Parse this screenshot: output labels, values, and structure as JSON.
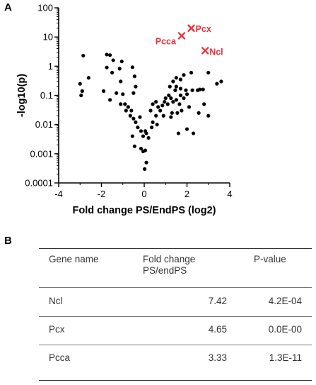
{
  "panel_labels": {
    "a": "A",
    "b": "B"
  },
  "chart_data": {
    "type": "scatter",
    "xlabel": "Fold change PS/EndPS (log2)",
    "ylabel": "-log10(p)",
    "xlim": [
      -4,
      4
    ],
    "ylim": [
      0.0001,
      100
    ],
    "y_scale": "log",
    "x_ticks": [
      "-4",
      "-2",
      "0",
      "2",
      "4"
    ],
    "y_ticks": [
      "0.0001",
      "0.001",
      "0.01",
      "0.1",
      "1",
      "10",
      "100"
    ],
    "grid": false,
    "colors": {
      "points": "#000000",
      "highlight": "#e8333d"
    },
    "points": [
      {
        "x": -2.85,
        "y": 2.3
      },
      {
        "x": -1.75,
        "y": 2.5
      },
      {
        "x": -1.6,
        "y": 2.4
      },
      {
        "x": -1.45,
        "y": 1.6
      },
      {
        "x": -1.05,
        "y": 1.45
      },
      {
        "x": -1.75,
        "y": 0.9
      },
      {
        "x": -1.15,
        "y": 0.82
      },
      {
        "x": -0.55,
        "y": 0.92
      },
      {
        "x": -1.5,
        "y": 0.6
      },
      {
        "x": -0.45,
        "y": 0.45
      },
      {
        "x": -2.6,
        "y": 0.4
      },
      {
        "x": -3.0,
        "y": 0.25
      },
      {
        "x": -1.1,
        "y": 0.3
      },
      {
        "x": -0.4,
        "y": 0.2
      },
      {
        "x": -0.5,
        "y": 0.12
      },
      {
        "x": -2.9,
        "y": 0.14
      },
      {
        "x": -2.95,
        "y": 0.1
      },
      {
        "x": -1.9,
        "y": 0.14
      },
      {
        "x": -1.3,
        "y": 0.12
      },
      {
        "x": -1.0,
        "y": 0.11
      },
      {
        "x": -1.6,
        "y": 0.07
      },
      {
        "x": -1.1,
        "y": 0.05
      },
      {
        "x": -0.9,
        "y": 0.05
      },
      {
        "x": -0.75,
        "y": 0.04
      },
      {
        "x": -0.85,
        "y": 0.03
      },
      {
        "x": -0.6,
        "y": 0.03
      },
      {
        "x": -0.65,
        "y": 0.02
      },
      {
        "x": -0.5,
        "y": 0.016
      },
      {
        "x": -0.4,
        "y": 0.012
      },
      {
        "x": -0.2,
        "y": 0.018
      },
      {
        "x": -0.3,
        "y": 0.008
      },
      {
        "x": -0.15,
        "y": 0.006
      },
      {
        "x": 0.05,
        "y": 0.006
      },
      {
        "x": 0.1,
        "y": 0.005
      },
      {
        "x": -0.55,
        "y": 0.004
      },
      {
        "x": -0.05,
        "y": 0.004
      },
      {
        "x": 0.2,
        "y": 0.0035
      },
      {
        "x": 0.4,
        "y": 0.012
      },
      {
        "x": 0.35,
        "y": 0.008
      },
      {
        "x": 0.6,
        "y": 0.01
      },
      {
        "x": 0.55,
        "y": 0.02
      },
      {
        "x": 0.3,
        "y": 0.03
      },
      {
        "x": -0.45,
        "y": 0.0018
      },
      {
        "x": -0.15,
        "y": 0.0015
      },
      {
        "x": 0.05,
        "y": 0.0013
      },
      {
        "x": -0.05,
        "y": 0.0012
      },
      {
        "x": 0.1,
        "y": 0.0005
      },
      {
        "x": 0.02,
        "y": 0.0003
      },
      {
        "x": 0.4,
        "y": 0.05
      },
      {
        "x": 0.55,
        "y": 0.06
      },
      {
        "x": 0.65,
        "y": 0.04
      },
      {
        "x": 0.75,
        "y": 0.03
      },
      {
        "x": 0.85,
        "y": 0.045
      },
      {
        "x": 0.95,
        "y": 0.06
      },
      {
        "x": 1.0,
        "y": 0.08
      },
      {
        "x": 1.15,
        "y": 0.1
      },
      {
        "x": 1.25,
        "y": 0.08
      },
      {
        "x": 1.35,
        "y": 0.06
      },
      {
        "x": 1.5,
        "y": 0.07
      },
      {
        "x": 1.65,
        "y": 0.05
      },
      {
        "x": 1.1,
        "y": 0.05
      },
      {
        "x": 0.9,
        "y": 0.02
      },
      {
        "x": 1.3,
        "y": 0.025
      },
      {
        "x": 1.55,
        "y": 0.025
      },
      {
        "x": 1.75,
        "y": 0.03
      },
      {
        "x": 2.1,
        "y": 0.04
      },
      {
        "x": 1.45,
        "y": 0.15
      },
      {
        "x": 1.5,
        "y": 0.2
      },
      {
        "x": 1.7,
        "y": 0.17
      },
      {
        "x": 1.95,
        "y": 0.15
      },
      {
        "x": 2.25,
        "y": 0.15
      },
      {
        "x": 2.0,
        "y": 0.11
      },
      {
        "x": 1.7,
        "y": 0.1
      },
      {
        "x": 1.85,
        "y": 0.08
      },
      {
        "x": 1.2,
        "y": 0.2
      },
      {
        "x": 1.35,
        "y": 0.3
      },
      {
        "x": 1.5,
        "y": 0.4
      },
      {
        "x": 1.7,
        "y": 0.35
      },
      {
        "x": 1.85,
        "y": 0.5
      },
      {
        "x": 2.2,
        "y": 0.6
      },
      {
        "x": 1.25,
        "y": 0.018
      },
      {
        "x": 1.6,
        "y": 0.005
      },
      {
        "x": 2.3,
        "y": 0.005
      },
      {
        "x": 2.0,
        "y": 0.007
      },
      {
        "x": 2.55,
        "y": 0.025
      },
      {
        "x": 2.75,
        "y": 0.16
      },
      {
        "x": 2.6,
        "y": 0.16
      },
      {
        "x": 2.8,
        "y": 0.05
      },
      {
        "x": 3.0,
        "y": 0.02
      },
      {
        "x": 3.4,
        "y": 0.25
      },
      {
        "x": 3.6,
        "y": 0.3
      },
      {
        "x": 3.0,
        "y": 0.6
      },
      {
        "x": 2.5,
        "y": 0.15
      }
    ],
    "highlights": [
      {
        "label": "Pcx",
        "x": 2.2,
        "y": 20
      },
      {
        "label": "Pcca",
        "x": 1.75,
        "y": 11
      },
      {
        "label": "Ncl",
        "x": 2.85,
        "y": 3.4
      }
    ]
  },
  "table": {
    "headers": [
      {
        "line1": "Gene name",
        "line2": ""
      },
      {
        "line1": "Fold change",
        "line2": "PS/endPS"
      },
      {
        "line1": "P-value",
        "line2": ""
      }
    ],
    "rows": [
      {
        "gene": "Ncl",
        "fold": "7.42",
        "p": "4.2E-04"
      },
      {
        "gene": "Pcx",
        "fold": "4.65",
        "p": "0.0E-00"
      },
      {
        "gene": "Pcca",
        "fold": "3.33",
        "p": "1.3E-11"
      }
    ]
  }
}
